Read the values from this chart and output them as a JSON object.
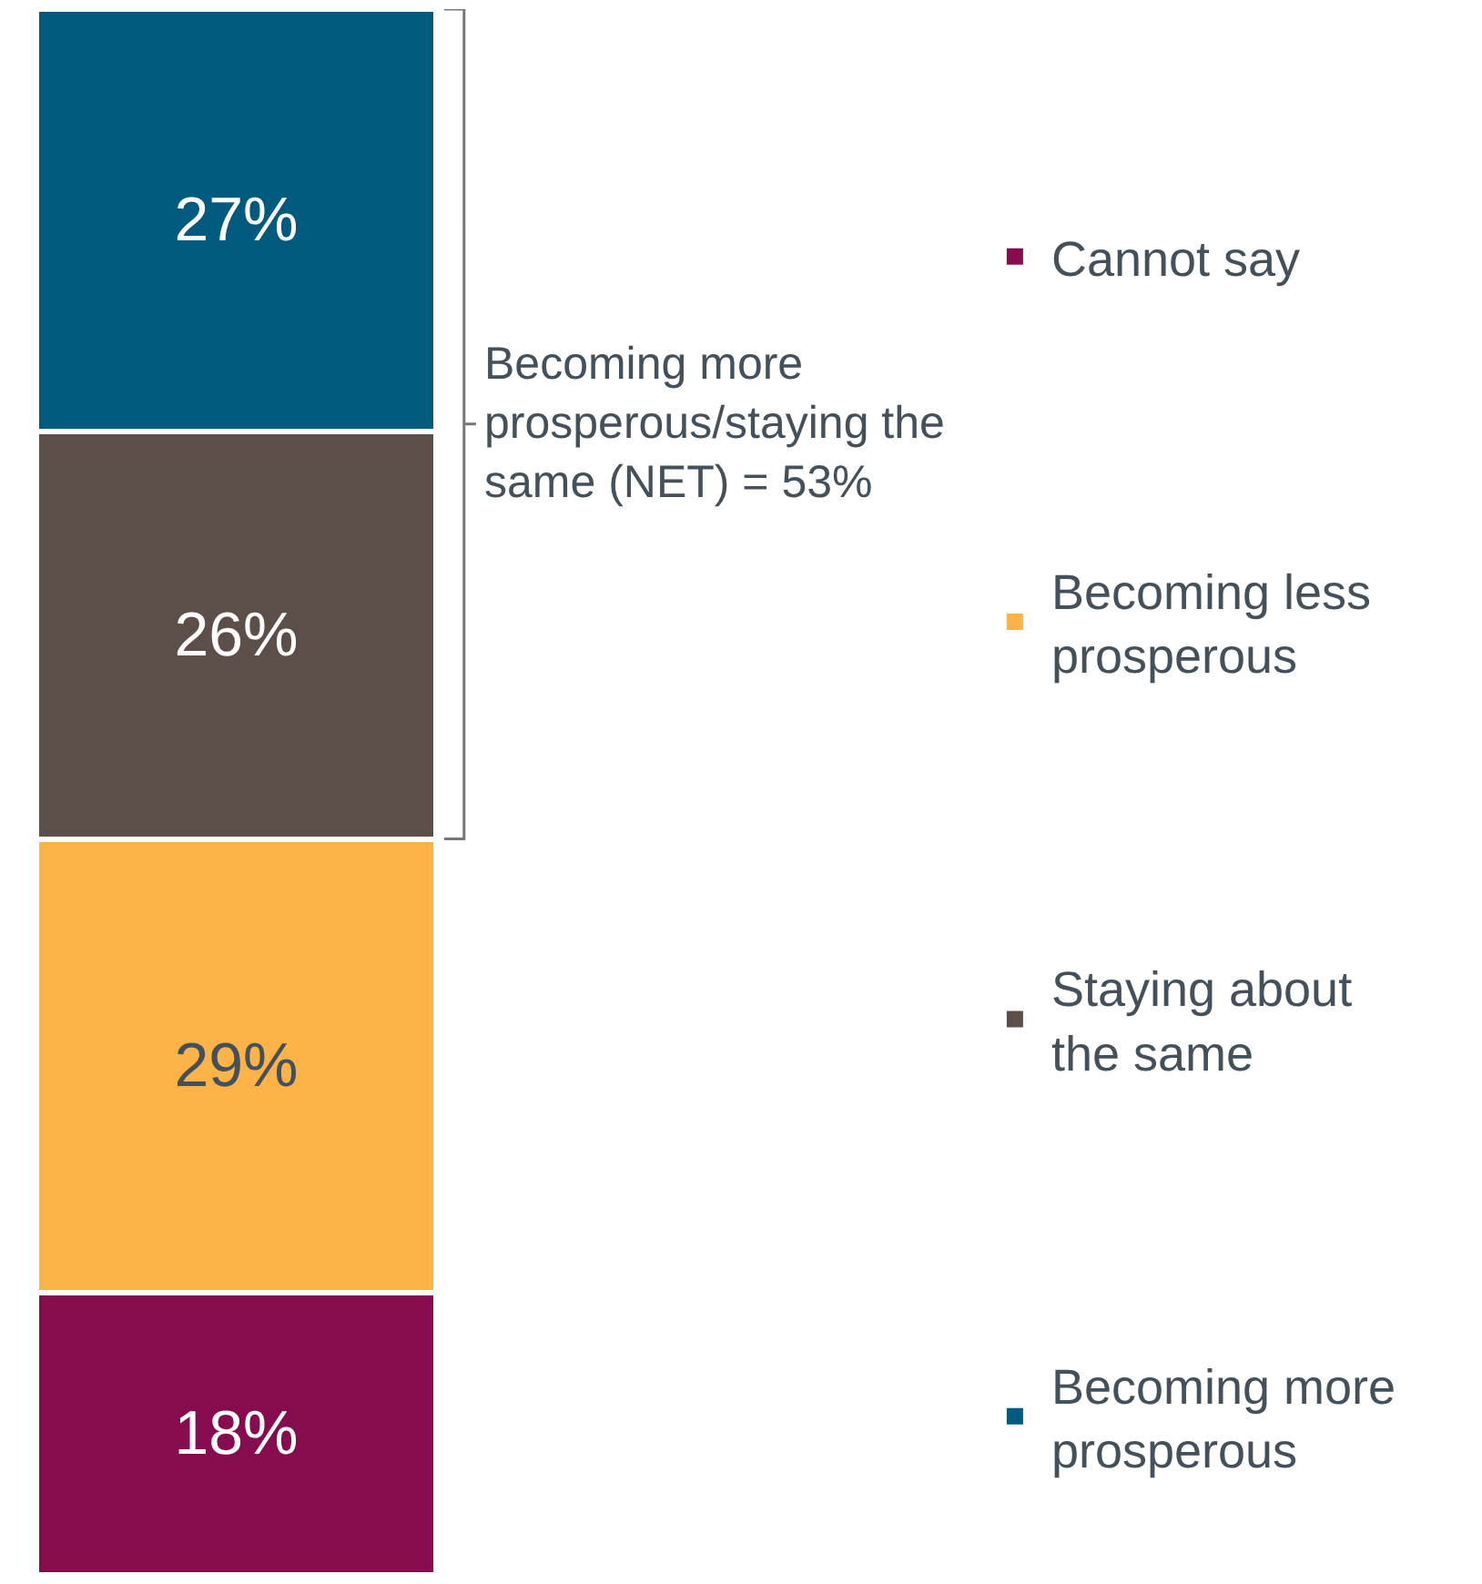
{
  "chart_data": {
    "type": "bar",
    "stacked": true,
    "legend": "right",
    "tick_labels": false,
    "categories": [
      null
    ],
    "series": [
      {
        "name": "Cannot say",
        "color": "#870c4f",
        "values": [
          18
        ],
        "value_labels": [
          "18%"
        ]
      },
      {
        "name": "Becoming less prosperous",
        "color": "#fdb347",
        "values": [
          29
        ],
        "value_labels": [
          "29%"
        ]
      },
      {
        "name": "Staying about the same",
        "color": "#5c4f4a",
        "values": [
          26
        ],
        "value_labels": [
          "26%"
        ]
      },
      {
        "name": "Becoming more prosperous",
        "color": "#005a7d",
        "values": [
          27
        ],
        "value_labels": [
          "27%"
        ]
      }
    ],
    "annotations": [
      "Becoming more prosperous/staying the same (NET) = 53%"
    ]
  }
}
